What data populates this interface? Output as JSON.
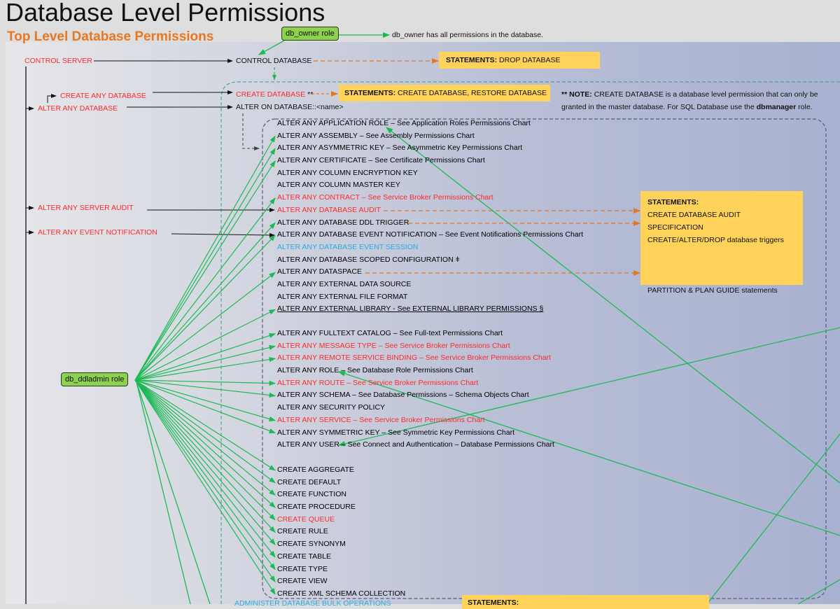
{
  "title": "Database Level Permissions",
  "subtitle": "Top Level Database Permissions",
  "colors": {
    "red": "#ff2a2a",
    "blue": "#29abe2",
    "green_arrow": "#1db954",
    "orange_dashed": "#e87722",
    "statement_box": "#ffd25a",
    "role_box": "#8dd14f",
    "subtitle": "#e87722"
  },
  "roles": {
    "db_owner": "db_owner role",
    "db_owner_note": "db_owner has all permissions in the database.",
    "db_ddladmin": "db_ddladmin role"
  },
  "server_permissions": {
    "control_server": "CONTROL SERVER",
    "create_any_database": "CREATE ANY DATABASE",
    "alter_any_database": "ALTER ANY DATABASE",
    "alter_any_server_audit": "ALTER ANY SERVER AUDIT",
    "alter_any_event_notification": "ALTER ANY EVENT NOTIFICATION"
  },
  "database_permissions": {
    "control_database": "CONTROL DATABASE",
    "create_database": "CREATE DATABASE",
    "create_database_marker": "**",
    "alter_on_database": "ALTER ON DATABASE::<name>"
  },
  "statements": {
    "drop": {
      "label": "STATEMENTS:",
      "text": "DROP DATABASE"
    },
    "create": {
      "label": "STATEMENTS:",
      "text": "CREATE DATABASE, RESTORE DATABASE"
    },
    "audit_box": {
      "label": "STATEMENTS:",
      "items": [
        "CREATE DATABASE AUDIT SPECIFICATION",
        "CREATE/ALTER/DROP database triggers",
        "PARTITION & PLAN GUIDE statements"
      ]
    },
    "bottom": {
      "label": "STATEMENTS:"
    }
  },
  "note": {
    "prefix": "** NOTE:",
    "text1": "CREATE DATABASE is a database level permission that can only be",
    "text2": "granted in the master database. For SQL Database use the",
    "bold": "dbmanager",
    "suffix": "role."
  },
  "list_groups": [
    [
      {
        "text": "ALTER ANY APPLICATION ROLE – See Application Roles Permissions Chart",
        "color": "black",
        "ddl": false
      },
      {
        "text": "ALTER ANY ASSEMBLY – See Assembly Permissions Chart",
        "color": "black",
        "ddl": true
      },
      {
        "text": "ALTER ANY ASYMMETRIC KEY – See Asymmetric Key Permissions Chart",
        "color": "black",
        "ddl": true
      },
      {
        "text": "ALTER ANY CERTIFICATE – See Certificate Permissions Chart",
        "color": "black",
        "ddl": true
      },
      {
        "text": "ALTER ANY COLUMN ENCRYPTION KEY",
        "color": "black",
        "ddl": false
      },
      {
        "text": "ALTER ANY COLUMN MASTER KEY",
        "color": "black",
        "ddl": false
      },
      {
        "text": "ALTER ANY CONTRACT – See Service Broker Permissions Chart",
        "color": "red",
        "ddl": true
      },
      {
        "text": "ALTER ANY DATABASE AUDIT",
        "color": "red",
        "ddl": false
      },
      {
        "text": "ALTER ANY DATABASE DDL TRIGGER",
        "color": "black",
        "ddl": true
      },
      {
        "text": "ALTER ANY DATABASE EVENT NOTIFICATION – See Event Notifications Permissions Chart",
        "color": "black",
        "ddl": true
      },
      {
        "text": "ALTER ANY DATABASE EVENT SESSION",
        "color": "blue",
        "ddl": false
      },
      {
        "text": "ALTER ANY DATABASE SCOPED CONFIGURATION ǂ",
        "color": "black",
        "ddl": false
      },
      {
        "text": "ALTER ANY DATASPACE",
        "color": "black",
        "ddl": true
      },
      {
        "text": "ALTER ANY EXTERNAL DATA SOURCE",
        "color": "black",
        "ddl": false
      },
      {
        "text": "ALTER ANY EXTERNAL FILE FORMAT",
        "color": "black",
        "ddl": false
      },
      {
        "text": "ALTER ANY EXTERNAL LIBRARY - See EXTERNAL LIBRARY PERMISSIONS §",
        "color": "black",
        "ddl": true,
        "underline": true
      }
    ],
    [
      {
        "text": "ALTER ANY FULLTEXT CATALOG – See Full-text Permissions Chart",
        "color": "black",
        "ddl": true
      },
      {
        "text": "ALTER ANY MESSAGE TYPE – See Service Broker Permissions Chart",
        "color": "red",
        "ddl": true
      },
      {
        "text": "ALTER ANY REMOTE SERVICE BINDING – See Service Broker Permissions Chart",
        "color": "red",
        "ddl": true
      },
      {
        "text": "ALTER ANY ROLE – See Database Role Permissions Chart",
        "color": "black",
        "ddl": false
      },
      {
        "text": "ALTER ANY ROUTE – See Service Broker Permissions Chart",
        "color": "red",
        "ddl": true
      },
      {
        "text": "ALTER ANY SCHEMA – See Database Permissions – Schema Objects Chart",
        "color": "black",
        "ddl": true
      },
      {
        "text": "ALTER ANY SECURITY POLICY",
        "color": "black",
        "ddl": false
      },
      {
        "text": "ALTER ANY SERVICE – See Service Broker Permissions Chart",
        "color": "red",
        "ddl": true
      },
      {
        "text": "ALTER ANY SYMMETRIC KEY – See Symmetric Key Permissions Chart",
        "color": "black",
        "ddl": true
      },
      {
        "text": "ALTER ANY USER – See Connect and Authentication – Database Permissions Chart",
        "color": "black",
        "ddl": false
      }
    ],
    [
      {
        "text": "CREATE AGGREGATE",
        "color": "black",
        "ddl": true
      },
      {
        "text": "CREATE DEFAULT",
        "color": "black",
        "ddl": true
      },
      {
        "text": "CREATE FUNCTION",
        "color": "black",
        "ddl": true
      },
      {
        "text": "CREATE PROCEDURE",
        "color": "black",
        "ddl": true
      },
      {
        "text": "CREATE QUEUE",
        "color": "red",
        "ddl": true
      },
      {
        "text": "CREATE RULE",
        "color": "black",
        "ddl": true
      },
      {
        "text": "CREATE SYNONYM",
        "color": "black",
        "ddl": true
      },
      {
        "text": "CREATE TABLE",
        "color": "black",
        "ddl": true
      },
      {
        "text": "CREATE TYPE",
        "color": "black",
        "ddl": true
      },
      {
        "text": "CREATE VIEW",
        "color": "black",
        "ddl": true
      },
      {
        "text": "CREATE XML SCHEMA COLLECTION",
        "color": "black",
        "ddl": true
      }
    ]
  ],
  "bottom_item": "ADMINISTER DATABASE BULK OPERATIONS"
}
